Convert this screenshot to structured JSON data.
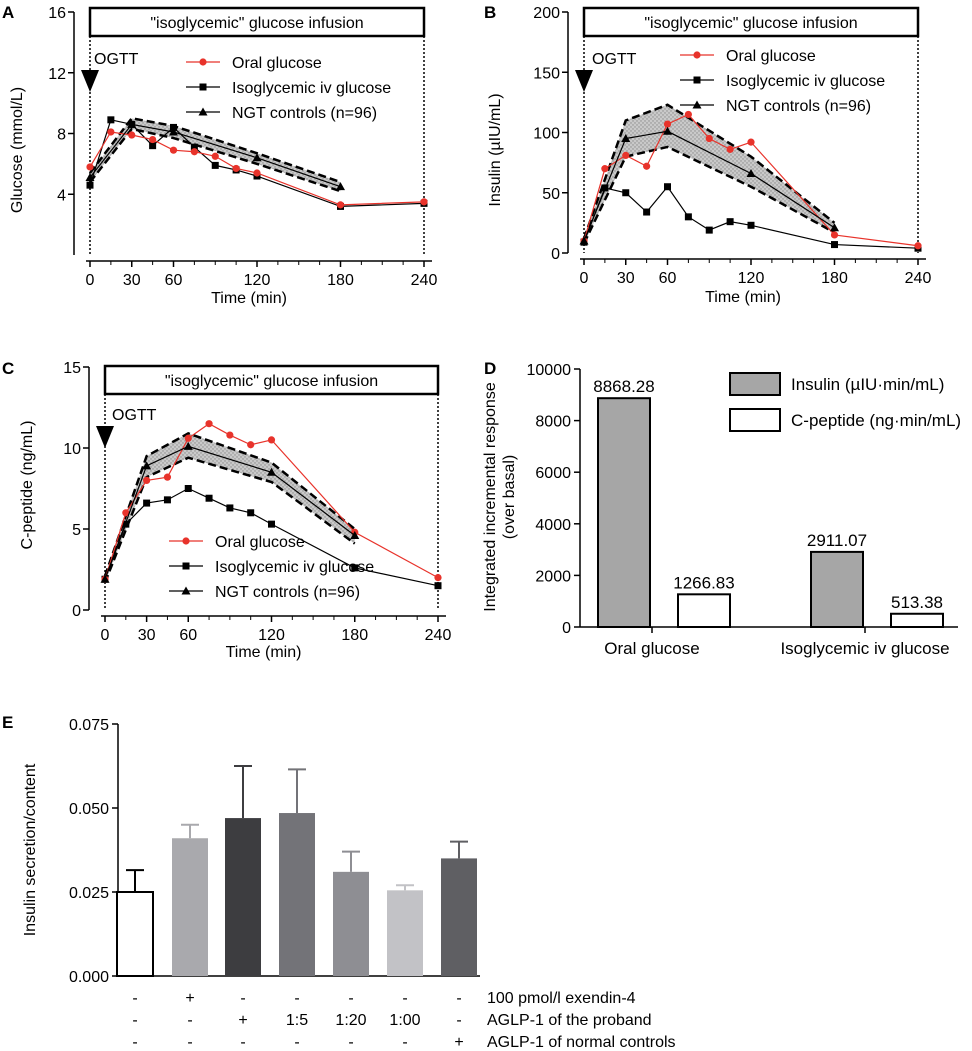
{
  "chart_data": [
    {
      "panel": "A",
      "type": "line",
      "banner": "\"isoglycemic\" glucose infusion",
      "marker_label": "OGTT",
      "xlabel": "Time (min)",
      "ylabel": "Glucose (mmol/L)",
      "xlim": [
        0,
        240
      ],
      "ylim": [
        0,
        16
      ],
      "xticks": [
        "0",
        "30",
        "60",
        "120",
        "180",
        "240"
      ],
      "yticks": [
        "4",
        "8",
        "12",
        "16"
      ],
      "legend": [
        "Oral glucose",
        "Isoglycemic iv glucose",
        "NGT controls (n=96)"
      ],
      "series": [
        {
          "name": "Oral glucose",
          "color": "#e8332b",
          "marker": "circle",
          "x": [
            0,
            15,
            30,
            45,
            60,
            75,
            90,
            105,
            120,
            180,
            240
          ],
          "y": [
            5.8,
            8.1,
            7.9,
            7.6,
            6.9,
            6.8,
            6.5,
            5.7,
            5.4,
            3.3,
            3.5
          ]
        },
        {
          "name": "Isoglycemic iv glucose",
          "color": "#000000",
          "marker": "square",
          "x": [
            0,
            15,
            30,
            45,
            60,
            75,
            90,
            105,
            120,
            180,
            240
          ],
          "y": [
            4.6,
            8.9,
            8.6,
            7.2,
            8.4,
            7.1,
            5.9,
            5.6,
            5.2,
            3.2,
            3.4
          ]
        },
        {
          "name": "NGT controls (n=96)",
          "color": "#000000",
          "marker": "triangle",
          "x": [
            0,
            30,
            60,
            120,
            180
          ],
          "y": [
            5.1,
            8.6,
            8.1,
            6.4,
            4.5
          ],
          "lower": [
            4.8,
            8.3,
            7.7,
            6.0,
            4.2
          ],
          "upper": [
            5.4,
            9.0,
            8.5,
            6.7,
            4.8
          ]
        }
      ]
    },
    {
      "panel": "B",
      "type": "line",
      "banner": "\"isoglycemic\" glucose infusion",
      "marker_label": "OGTT",
      "xlabel": "Time (min)",
      "ylabel": "Insulin (µIU/mL)",
      "xlim": [
        0,
        240
      ],
      "ylim": [
        0,
        200
      ],
      "xticks": [
        "0",
        "30",
        "60",
        "120",
        "180",
        "240"
      ],
      "yticks": [
        "0",
        "50",
        "100",
        "150",
        "200"
      ],
      "legend": [
        "Oral glucose",
        "Isoglycemic iv glucose",
        "NGT controls (n=96)"
      ],
      "series": [
        {
          "name": "Oral glucose",
          "color": "#e8332b",
          "marker": "circle",
          "x": [
            0,
            15,
            30,
            45,
            60,
            75,
            90,
            105,
            120,
            180,
            240
          ],
          "y": [
            10,
            70,
            81,
            72,
            107,
            115,
            95,
            86,
            92,
            15,
            6
          ]
        },
        {
          "name": "Isoglycemic iv glucose",
          "color": "#000000",
          "marker": "square",
          "x": [
            0,
            15,
            30,
            45,
            60,
            75,
            90,
            105,
            120,
            180,
            240
          ],
          "y": [
            9,
            54,
            50,
            34,
            55,
            30,
            19,
            26,
            23,
            7,
            4
          ]
        },
        {
          "name": "NGT controls (n=96)",
          "color": "#000000",
          "marker": "triangle",
          "x": [
            0,
            30,
            60,
            120,
            180
          ],
          "y": [
            10,
            95,
            101,
            66,
            21
          ],
          "lower": [
            8,
            80,
            88,
            55,
            17
          ],
          "upper": [
            12,
            110,
            123,
            80,
            25
          ]
        }
      ]
    },
    {
      "panel": "C",
      "type": "line",
      "banner": "\"isoglycemic\" glucose infusion",
      "marker_label": "OGTT",
      "xlabel": "Time (min)",
      "ylabel": "C-peptide (ng/mL)",
      "xlim": [
        0,
        240
      ],
      "ylim": [
        0,
        15
      ],
      "xticks": [
        "0",
        "30",
        "60",
        "120",
        "180",
        "240"
      ],
      "yticks": [
        "0",
        "5",
        "10",
        "15"
      ],
      "legend": [
        "Oral glucose",
        "Isoglycemic iv glucose",
        "NGT controls (n=96)"
      ],
      "series": [
        {
          "name": "Oral glucose",
          "color": "#e8332b",
          "marker": "circle",
          "x": [
            0,
            15,
            30,
            45,
            60,
            75,
            90,
            105,
            120,
            180,
            240
          ],
          "y": [
            1.9,
            6.0,
            8.0,
            8.2,
            10.6,
            11.5,
            10.8,
            10.2,
            10.5,
            4.8,
            2.0
          ]
        },
        {
          "name": "Isoglycemic iv glucose",
          "color": "#000000",
          "marker": "square",
          "x": [
            0,
            15,
            30,
            45,
            60,
            75,
            90,
            105,
            120,
            180,
            240
          ],
          "y": [
            1.9,
            5.3,
            6.6,
            6.8,
            7.5,
            6.9,
            6.3,
            6.0,
            5.3,
            2.6,
            1.5
          ]
        },
        {
          "name": "NGT controls (n=96)",
          "color": "#000000",
          "marker": "triangle",
          "x": [
            0,
            30,
            60,
            120,
            180
          ],
          "y": [
            1.9,
            8.9,
            10.1,
            8.5,
            4.6
          ],
          "lower": [
            1.7,
            8.2,
            9.4,
            7.9,
            4.1
          ],
          "upper": [
            2.1,
            9.5,
            10.9,
            9.1,
            5.0
          ]
        }
      ]
    },
    {
      "panel": "D",
      "type": "bar",
      "ylabel_lines": [
        "Integrated incremental response",
        "(over basal)"
      ],
      "categories": [
        "Oral glucose",
        "Isoglycemic iv glucose"
      ],
      "ylim": [
        0,
        10000
      ],
      "yticks": [
        "0",
        "2000",
        "4000",
        "6000",
        "8000",
        "10000"
      ],
      "series": [
        {
          "name": "Insulin (µIU·min/mL)",
          "color": "#a6a6a6",
          "values": [
            8868.28,
            2911.07
          ],
          "labels": [
            "8868.28",
            "2911.07"
          ]
        },
        {
          "name": "C-peptide (ng·min/mL)",
          "color": "#ffffff",
          "values": [
            1266.83,
            513.38
          ],
          "labels": [
            "1266.83",
            "513.38"
          ]
        }
      ]
    },
    {
      "panel": "E",
      "type": "bar",
      "ylabel": "Insulin  secretion/content",
      "ylim": [
        0,
        0.075
      ],
      "yticks": [
        "0.000",
        "0.025",
        "0.050",
        "0.075"
      ],
      "bars": [
        {
          "value": 0.025,
          "error": 0.0065,
          "color": "#ffffff"
        },
        {
          "value": 0.041,
          "error": 0.004,
          "color": "#a9a9ad"
        },
        {
          "value": 0.047,
          "error": 0.0155,
          "color": "#3d3d40"
        },
        {
          "value": 0.0485,
          "error": 0.013,
          "color": "#737378"
        },
        {
          "value": 0.031,
          "error": 0.006,
          "color": "#8e8e93"
        },
        {
          "value": 0.0255,
          "error": 0.0015,
          "color": "#c2c2c6"
        },
        {
          "value": 0.035,
          "error": 0.005,
          "color": "#5f5f63"
        }
      ],
      "condition_rows": [
        {
          "label": "100 pmol/l exendin-4",
          "marks": [
            "-",
            "+",
            "-",
            "-",
            "-",
            "-",
            "-"
          ]
        },
        {
          "label": "AGLP-1 of the proband",
          "marks": [
            "-",
            "-",
            "+",
            "1:5",
            "1:20",
            "1:00",
            "-"
          ]
        },
        {
          "label": "AGLP-1 of normal controls",
          "marks": [
            "-",
            "-",
            "-",
            "-",
            "-",
            "-",
            "+"
          ]
        }
      ]
    }
  ],
  "panel_letters": [
    "A",
    "B",
    "C",
    "D",
    "E"
  ]
}
